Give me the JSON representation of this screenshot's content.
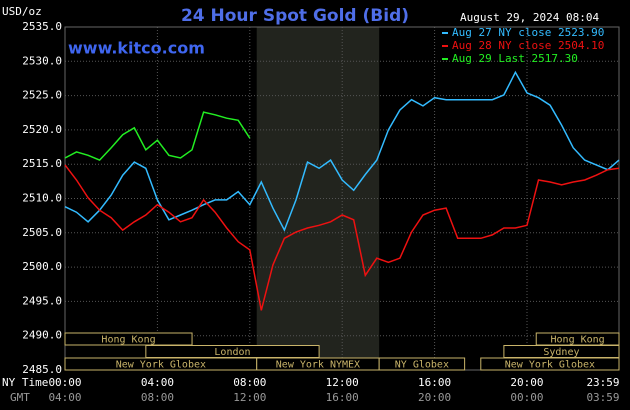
{
  "chart_data": {
    "type": "line",
    "title": "24 Hour Spot Gold (Bid)",
    "y_label": "USD/oz",
    "watermark": "www.kitco.com",
    "timestamp": "August 29, 2024 08:04",
    "x_row_label": "NY Time",
    "x2_row_label": "GMT",
    "xlim": [
      0,
      23.983
    ],
    "ylim": [
      2485,
      2535
    ],
    "xticks": [
      {
        "value": 0,
        "label": "00:00"
      },
      {
        "value": 4,
        "label": "04:00"
      },
      {
        "value": 8,
        "label": "08:00"
      },
      {
        "value": 12,
        "label": "12:00"
      },
      {
        "value": 16,
        "label": "16:00"
      },
      {
        "value": 20,
        "label": "20:00"
      },
      {
        "value": 23.983,
        "label": "23:59"
      }
    ],
    "x2tick_labels": [
      "04:00",
      "08:00",
      "12:00",
      "16:00",
      "20:00",
      "00:00",
      "03:59"
    ],
    "yticks": [
      {
        "value": 2485,
        "label": "2485.0"
      },
      {
        "value": 2490,
        "label": "2490.0"
      },
      {
        "value": 2495,
        "label": "2495.0"
      },
      {
        "value": 2500,
        "label": "2500.0"
      },
      {
        "value": 2505,
        "label": "2505.0"
      },
      {
        "value": 2510,
        "label": "2510.0"
      },
      {
        "value": 2515,
        "label": "2515.0"
      },
      {
        "value": 2520,
        "label": "2520.0"
      },
      {
        "value": 2525,
        "label": "2525.0"
      },
      {
        "value": 2530,
        "label": "2530.0"
      },
      {
        "value": 2535,
        "label": "2535.0"
      }
    ],
    "grid": true,
    "legend": "top-right",
    "sessions": [
      {
        "name": "Hong Kong",
        "start": 0,
        "end": 5.5,
        "lane": 0
      },
      {
        "name": "London",
        "start": 3.5,
        "end": 11,
        "lane": 1
      },
      {
        "name": "New York Globex",
        "start": 0,
        "end": 8.3,
        "lane": 2
      },
      {
        "name": "New York NYMEX",
        "start": 8.3,
        "end": 13.6,
        "lane": 2
      },
      {
        "name": "NY Globex",
        "start": 13.6,
        "end": 17.3,
        "lane": 2
      },
      {
        "name": "Hong Kong",
        "start": 20.4,
        "end": 23.983,
        "lane": 0
      },
      {
        "name": "Sydney",
        "start": 19,
        "end": 23.983,
        "lane": 1
      },
      {
        "name": "New York Globex",
        "start": 18,
        "end": 23.983,
        "lane": 2
      }
    ],
    "series": [
      {
        "name": "Aug 27 NY close 2523.90",
        "color": "#33bbff",
        "x": [
          0,
          0.5,
          1,
          1.5,
          2,
          2.5,
          3,
          3.5,
          4,
          4.5,
          5,
          5.5,
          6,
          6.5,
          7,
          7.5,
          8,
          8.5,
          9,
          9.5,
          10,
          10.5,
          11,
          11.5,
          12,
          12.5,
          13,
          13.5,
          14,
          14.5,
          15,
          15.5,
          16,
          16.5,
          17,
          17.5,
          18,
          18.5,
          19,
          19.5,
          20,
          20.5,
          21,
          21.5,
          22,
          22.5,
          23,
          23.5,
          23.983
        ],
        "values": [
          2508.8,
          2508.0,
          2506.6,
          2508.3,
          2510.5,
          2513.4,
          2515.3,
          2514.4,
          2509.8,
          2506.9,
          2507.6,
          2508.3,
          2509.1,
          2509.8,
          2509.8,
          2511.0,
          2509.1,
          2512.4,
          2508.6,
          2505.4,
          2509.8,
          2515.3,
          2514.4,
          2515.6,
          2512.7,
          2511.2,
          2513.5,
          2515.6,
          2520.0,
          2522.9,
          2524.4,
          2523.5,
          2524.7,
          2524.4,
          2524.4,
          2524.4,
          2524.4,
          2524.4,
          2525.1,
          2528.4,
          2525.4,
          2524.7,
          2523.6,
          2520.7,
          2517.4,
          2515.6,
          2514.9,
          2514.2,
          2515.6
        ]
      },
      {
        "name": "Aug 28 NY close 2504.10",
        "color": "#ee1111",
        "x": [
          0,
          0.5,
          1,
          1.5,
          2,
          2.5,
          3,
          3.5,
          4,
          4.5,
          5,
          5.5,
          6,
          6.5,
          7,
          7.5,
          8,
          8.5,
          9,
          9.5,
          10,
          10.5,
          11,
          11.5,
          12,
          12.5,
          13,
          13.5,
          14,
          14.5,
          15,
          15.5,
          16,
          16.5,
          17,
          17.5,
          18,
          18.5,
          19,
          19.5,
          20,
          20.5,
          21,
          21.5,
          22,
          22.5,
          23,
          23.5,
          23.983
        ],
        "values": [
          2514.9,
          2512.7,
          2510.1,
          2508.3,
          2507.2,
          2505.4,
          2506.6,
          2507.6,
          2509.1,
          2508.0,
          2506.6,
          2507.2,
          2509.8,
          2508.0,
          2505.7,
          2503.7,
          2502.5,
          2493.7,
          2500.3,
          2504.2,
          2505.1,
          2505.7,
          2506.1,
          2506.6,
          2507.6,
          2506.9,
          2498.8,
          2501.3,
          2500.7,
          2501.3,
          2505.1,
          2507.6,
          2508.3,
          2508.6,
          2504.2,
          2504.2,
          2504.2,
          2504.7,
          2505.7,
          2505.7,
          2506.1,
          2512.7,
          2512.4,
          2512.0,
          2512.4,
          2512.7,
          2513.4,
          2514.2,
          2514.4
        ]
      },
      {
        "name": "Aug 29 Last 2517.30",
        "color": "#22ee22",
        "x": [
          0,
          0.5,
          1,
          1.5,
          2,
          2.5,
          3,
          3.5,
          4,
          4.5,
          5,
          5.5,
          6,
          6.5,
          7,
          7.5,
          8
        ],
        "values": [
          2515.9,
          2516.8,
          2516.3,
          2515.6,
          2517.4,
          2519.3,
          2520.3,
          2517.1,
          2518.5,
          2516.3,
          2515.9,
          2517.1,
          2522.6,
          2522.2,
          2521.7,
          2521.4,
          2518.8
        ]
      }
    ]
  }
}
